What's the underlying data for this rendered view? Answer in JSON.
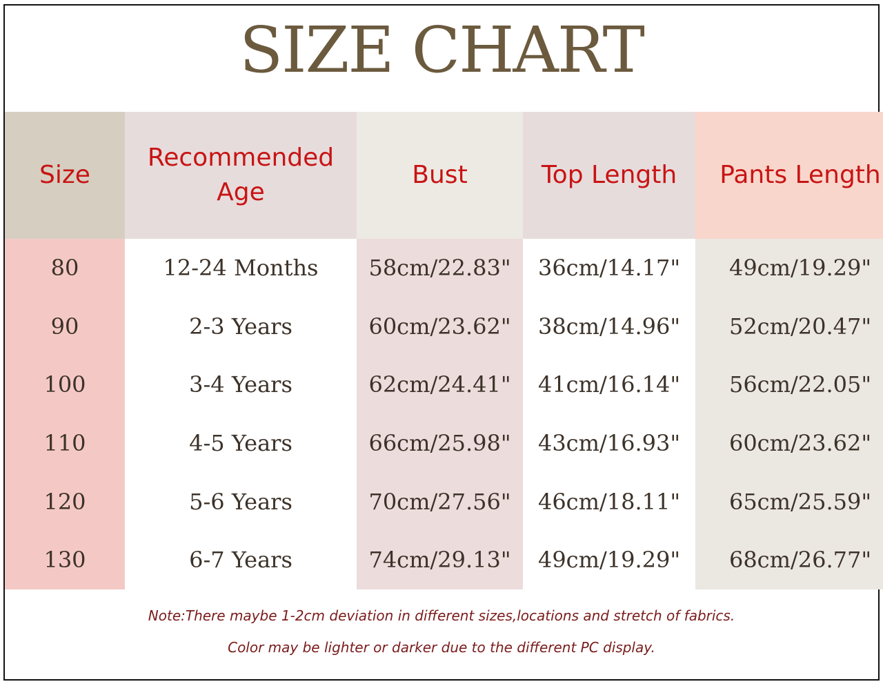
{
  "title": "SIZE CHART",
  "headers": [
    "Size",
    "Recommended Age",
    "Bust",
    "Top Length",
    "Pants Length"
  ],
  "rows": [
    [
      "80",
      "12-24 Months",
      "58cm/22.83\"",
      "36cm/14.17\"",
      "49cm/19.29\""
    ],
    [
      "90",
      "2-3 Years",
      "60cm/23.62\"",
      "38cm/14.96\"",
      "52cm/20.47\""
    ],
    [
      "100",
      "3-4 Years",
      "62cm/24.41\"",
      "41cm/16.14\"",
      "56cm/22.05\""
    ],
    [
      "110",
      "4-5 Years",
      "66cm/25.98\"",
      "43cm/16.93\"",
      "60cm/23.62\""
    ],
    [
      "120",
      "5-6 Years",
      "70cm/27.56\"",
      "46cm/18.11\"",
      "65cm/25.59\""
    ],
    [
      "130",
      "6-7 Years",
      "74cm/29.13\"",
      "49cm/19.29\"",
      "68cm/26.77\""
    ]
  ],
  "notes": [
    "Note:There maybe 1-2cm deviation in different sizes,locations and stretch of fabrics.",
    "Color may be lighter or darker due to the different PC display."
  ],
  "colors": {
    "title": "#6b5a3e",
    "header_text": "#c81414",
    "note_text": "#7a1c1c"
  }
}
